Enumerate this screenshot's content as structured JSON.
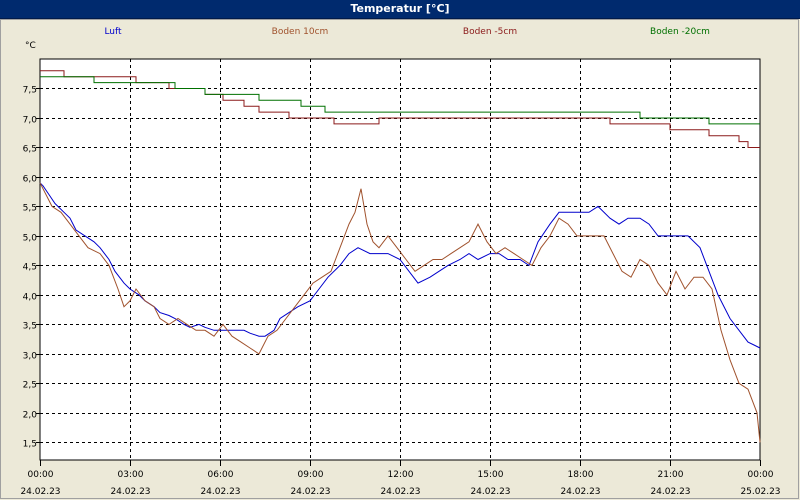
{
  "window": {
    "title": "Temperatur [°C]"
  },
  "chart_data": {
    "type": "line",
    "title": "Temperatur [°C]",
    "unit_label": "°C",
    "ylim": [
      1.2,
      8.0
    ],
    "y_ticks": [
      "1,5",
      "2,0",
      "2,5",
      "3,0",
      "3,5",
      "4,0",
      "4,5",
      "5,0",
      "5,5",
      "6,0",
      "6,5",
      "7,0",
      "7,5"
    ],
    "y_tick_values": [
      1.5,
      2.0,
      2.5,
      3.0,
      3.5,
      4.0,
      4.5,
      5.0,
      5.5,
      6.0,
      6.5,
      7.0,
      7.5
    ],
    "x_ticks": [
      {
        "time": "00:00",
        "date": "24.02.23"
      },
      {
        "time": "03:00",
        "date": "24.02.23"
      },
      {
        "time": "06:00",
        "date": "24.02.23"
      },
      {
        "time": "09:00",
        "date": "24.02.23"
      },
      {
        "time": "12:00",
        "date": "24.02.23"
      },
      {
        "time": "15:00",
        "date": "24.02.23"
      },
      {
        "time": "18:00",
        "date": "24.02.23"
      },
      {
        "time": "21:00",
        "date": "24.02.23"
      },
      {
        "time": "00:00",
        "date": "25.02.23"
      }
    ],
    "x_tick_hours": [
      0,
      3,
      6,
      9,
      12,
      15,
      18,
      21,
      24
    ],
    "xlim_hours": [
      0,
      24
    ],
    "grid": true,
    "legend_position": "top",
    "series": [
      {
        "name": "Luft",
        "color": "#0000cc",
        "x": [
          0,
          0.1,
          0.3,
          0.5,
          0.8,
          1.0,
          1.2,
          1.5,
          1.8,
          2.0,
          2.3,
          2.5,
          2.8,
          3.0,
          3.3,
          3.5,
          3.8,
          4.0,
          4.3,
          4.5,
          4.8,
          5.0,
          5.3,
          5.5,
          5.8,
          6.0,
          6.3,
          6.5,
          6.8,
          7.0,
          7.3,
          7.5,
          7.8,
          8.0,
          8.3,
          8.6,
          9.0,
          9.3,
          9.6,
          10.0,
          10.3,
          10.6,
          11.0,
          11.3,
          11.6,
          12.0,
          12.3,
          12.6,
          13.0,
          13.3,
          13.6,
          14.0,
          14.3,
          14.6,
          15.0,
          15.3,
          15.6,
          16.0,
          16.3,
          16.6,
          17.0,
          17.3,
          17.6,
          18.0,
          18.3,
          18.6,
          19.0,
          19.3,
          19.6,
          20.0,
          20.3,
          20.6,
          21.0,
          21.3,
          21.6,
          22.0,
          22.3,
          22.6,
          23.0,
          23.3,
          23.6,
          23.8,
          24.0
        ],
        "y": [
          5.9,
          5.85,
          5.7,
          5.55,
          5.4,
          5.3,
          5.1,
          5.0,
          4.9,
          4.8,
          4.6,
          4.4,
          4.2,
          4.1,
          4.0,
          3.9,
          3.8,
          3.7,
          3.65,
          3.6,
          3.5,
          3.45,
          3.5,
          3.45,
          3.4,
          3.4,
          3.4,
          3.4,
          3.4,
          3.35,
          3.3,
          3.3,
          3.4,
          3.6,
          3.7,
          3.8,
          3.9,
          4.1,
          4.3,
          4.5,
          4.7,
          4.8,
          4.7,
          4.7,
          4.7,
          4.6,
          4.4,
          4.2,
          4.3,
          4.4,
          4.5,
          4.6,
          4.7,
          4.6,
          4.7,
          4.7,
          4.6,
          4.6,
          4.5,
          4.9,
          5.2,
          5.4,
          5.4,
          5.4,
          5.4,
          5.5,
          5.3,
          5.2,
          5.3,
          5.3,
          5.2,
          5.0,
          5.0,
          5.0,
          5.0,
          4.8,
          4.4,
          4.0,
          3.6,
          3.4,
          3.2,
          3.15,
          3.1
        ]
      },
      {
        "name": "Boden 10cm",
        "color": "#a0522d",
        "x": [
          0,
          0.2,
          0.4,
          0.7,
          1.0,
          1.3,
          1.6,
          2.0,
          2.3,
          2.6,
          2.8,
          3.0,
          3.2,
          3.5,
          3.8,
          4.0,
          4.3,
          4.6,
          4.9,
          5.2,
          5.5,
          5.8,
          6.1,
          6.4,
          6.7,
          7.0,
          7.3,
          7.6,
          7.9,
          8.2,
          8.5,
          8.8,
          9.1,
          9.4,
          9.7,
          10.0,
          10.3,
          10.5,
          10.7,
          10.9,
          11.1,
          11.3,
          11.6,
          11.9,
          12.2,
          12.5,
          12.8,
          13.1,
          13.4,
          13.7,
          14.0,
          14.3,
          14.6,
          14.9,
          15.2,
          15.5,
          15.8,
          16.1,
          16.4,
          16.7,
          17.0,
          17.3,
          17.6,
          17.9,
          18.2,
          18.5,
          18.8,
          19.1,
          19.4,
          19.7,
          20.0,
          20.3,
          20.6,
          20.9,
          21.2,
          21.5,
          21.8,
          22.1,
          22.4,
          22.7,
          23.0,
          23.3,
          23.6,
          23.9,
          24.0
        ],
        "y": [
          5.9,
          5.7,
          5.5,
          5.4,
          5.2,
          5.0,
          4.8,
          4.7,
          4.5,
          4.1,
          3.8,
          3.9,
          4.1,
          3.9,
          3.8,
          3.6,
          3.5,
          3.6,
          3.5,
          3.4,
          3.4,
          3.3,
          3.5,
          3.3,
          3.2,
          3.1,
          3.0,
          3.3,
          3.4,
          3.6,
          3.8,
          4.0,
          4.2,
          4.3,
          4.4,
          4.8,
          5.2,
          5.4,
          5.8,
          5.2,
          4.9,
          4.8,
          5.0,
          4.8,
          4.6,
          4.4,
          4.5,
          4.6,
          4.6,
          4.7,
          4.8,
          4.9,
          5.2,
          4.9,
          4.7,
          4.8,
          4.7,
          4.6,
          4.5,
          4.8,
          5.0,
          5.3,
          5.2,
          5.0,
          5.0,
          5.0,
          5.0,
          4.7,
          4.4,
          4.3,
          4.6,
          4.5,
          4.2,
          4.0,
          4.4,
          4.1,
          4.3,
          4.3,
          4.1,
          3.4,
          2.9,
          2.5,
          2.4,
          2.0,
          1.5
        ]
      },
      {
        "name": "Boden -5cm",
        "color": "#8b1a1a",
        "x": [
          0,
          0.8,
          0.8,
          3.2,
          3.2,
          4.3,
          4.3,
          5.5,
          5.5,
          6.1,
          6.1,
          6.8,
          6.8,
          7.3,
          7.3,
          8.3,
          8.3,
          8.8,
          8.8,
          9.8,
          9.8,
          11.3,
          11.3,
          14.8,
          14.8,
          17.3,
          17.3,
          19.0,
          19.0,
          20.0,
          20.0,
          21.0,
          21.0,
          22.3,
          22.3,
          23.3,
          23.3,
          23.6,
          23.6,
          24.0
        ],
        "y": [
          7.8,
          7.8,
          7.7,
          7.7,
          7.6,
          7.6,
          7.5,
          7.5,
          7.4,
          7.4,
          7.3,
          7.3,
          7.2,
          7.2,
          7.1,
          7.1,
          7.0,
          7.0,
          7.0,
          7.0,
          6.9,
          6.9,
          7.0,
          7.0,
          7.0,
          7.0,
          7.0,
          7.0,
          6.9,
          6.9,
          6.9,
          6.9,
          6.8,
          6.8,
          6.7,
          6.7,
          6.6,
          6.6,
          6.5,
          6.5
        ]
      },
      {
        "name": "Boden -20cm",
        "color": "#007000",
        "x": [
          0,
          1.8,
          1.8,
          4.5,
          4.5,
          5.5,
          5.5,
          7.3,
          7.3,
          8.7,
          8.7,
          9.5,
          9.5,
          11.0,
          11.0,
          15.5,
          15.5,
          16.2,
          16.2,
          20.0,
          20.0,
          22.0,
          22.0,
          22.3,
          22.3,
          24.0
        ],
        "y": [
          7.7,
          7.7,
          7.6,
          7.6,
          7.5,
          7.5,
          7.4,
          7.4,
          7.3,
          7.3,
          7.2,
          7.2,
          7.1,
          7.1,
          7.1,
          7.1,
          7.1,
          7.1,
          7.1,
          7.1,
          7.0,
          7.0,
          7.0,
          7.0,
          6.9,
          6.9
        ]
      }
    ]
  }
}
